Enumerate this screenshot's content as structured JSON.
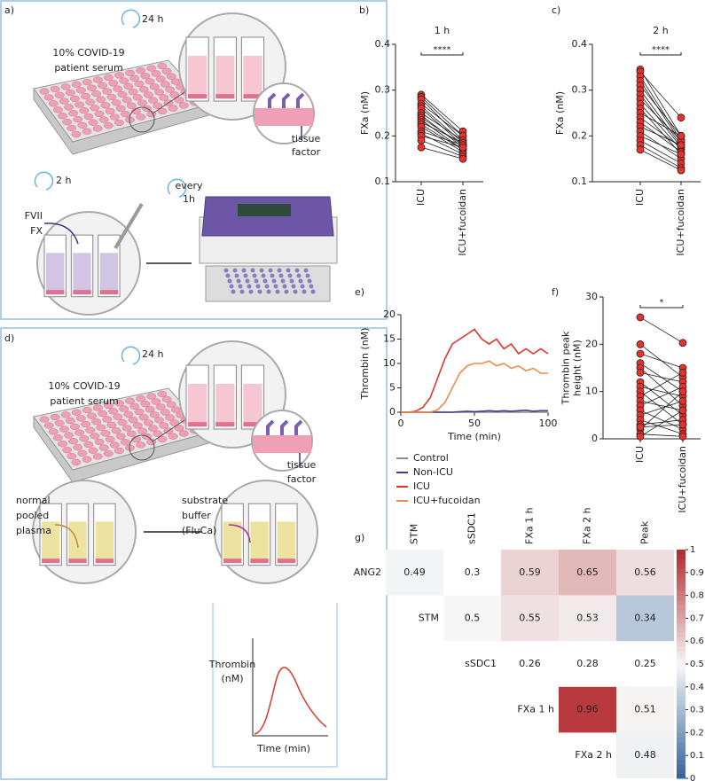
{
  "figure_a": {
    "label": "a)",
    "cycle": "24 h",
    "serum": [
      "10% COVID-19",
      "patient serum"
    ],
    "tissue_factor": [
      "tissue",
      "factor"
    ],
    "incubation": "2 h",
    "sampling": [
      "every",
      "1h"
    ],
    "reagents": [
      "FVII",
      "FX"
    ]
  },
  "figure_d": {
    "label": "d)",
    "cycle": "24 h",
    "serum": [
      "10% COVID-19",
      "patient serum"
    ],
    "tissue_factor": [
      "tissue",
      "factor"
    ],
    "plasma": [
      "normal",
      "pooled",
      "plasma"
    ],
    "substrate": [
      "substrate",
      "buffer",
      "(FluCa)"
    ],
    "inset": {
      "y_label": [
        "Thrombin",
        "(nM)"
      ],
      "x_label": "Time (min)"
    }
  },
  "chart_data": [
    {
      "type": "paired",
      "panel_label": "b)",
      "title": "1 h",
      "y_label": [
        "FXa (nM)"
      ],
      "categories": [
        "ICU",
        "ICU+fucoidan"
      ],
      "annotation": "****",
      "color": "#e8312a",
      "ylim": [
        0.1,
        0.4
      ],
      "yticks": [
        0.1,
        0.2,
        0.3,
        0.4
      ],
      "pairs": [
        [
          0.29,
          0.21
        ],
        [
          0.285,
          0.2
        ],
        [
          0.28,
          0.19
        ],
        [
          0.27,
          0.2
        ],
        [
          0.265,
          0.185
        ],
        [
          0.26,
          0.18
        ],
        [
          0.25,
          0.19
        ],
        [
          0.245,
          0.175
        ],
        [
          0.24,
          0.18
        ],
        [
          0.235,
          0.17
        ],
        [
          0.23,
          0.185
        ],
        [
          0.225,
          0.17
        ],
        [
          0.22,
          0.165
        ],
        [
          0.21,
          0.18
        ],
        [
          0.205,
          0.16
        ],
        [
          0.2,
          0.175
        ],
        [
          0.19,
          0.155
        ],
        [
          0.175,
          0.15
        ]
      ]
    },
    {
      "type": "paired",
      "panel_label": "c)",
      "title": "2 h",
      "y_label": [
        "FXa (nM)"
      ],
      "categories": [
        "ICU",
        "ICU+fucoidan"
      ],
      "annotation": "****",
      "color": "#e8312a",
      "ylim": [
        0.1,
        0.4
      ],
      "yticks": [
        0.1,
        0.2,
        0.3,
        0.4
      ],
      "pairs": [
        [
          0.345,
          0.2
        ],
        [
          0.34,
          0.24
        ],
        [
          0.33,
          0.19
        ],
        [
          0.32,
          0.185
        ],
        [
          0.31,
          0.2
        ],
        [
          0.3,
          0.18
        ],
        [
          0.29,
          0.175
        ],
        [
          0.28,
          0.19
        ],
        [
          0.27,
          0.17
        ],
        [
          0.26,
          0.16
        ],
        [
          0.25,
          0.2
        ],
        [
          0.24,
          0.175
        ],
        [
          0.23,
          0.165
        ],
        [
          0.22,
          0.18
        ],
        [
          0.21,
          0.15
        ],
        [
          0.2,
          0.16
        ],
        [
          0.19,
          0.14
        ],
        [
          0.18,
          0.13
        ],
        [
          0.17,
          0.125
        ]
      ]
    },
    {
      "type": "line",
      "panel_label": "e)",
      "x_label": "Time (min)",
      "y_label": [
        "Thrombin (nM)"
      ],
      "x": [
        0,
        5,
        10,
        15,
        20,
        25,
        30,
        35,
        40,
        45,
        50,
        55,
        60,
        65,
        70,
        75,
        80,
        85,
        90,
        95,
        100
      ],
      "xlim": [
        0,
        100
      ],
      "xticks": [
        0,
        50,
        100
      ],
      "ylim": [
        0,
        20
      ],
      "yticks": [
        0,
        5,
        10,
        15,
        20
      ],
      "series": [
        {
          "name": "Control",
          "color": "#8c8c8c",
          "values": [
            0,
            0,
            0,
            0,
            0,
            0,
            0,
            0,
            0,
            0,
            0,
            0,
            0,
            0,
            0,
            0,
            0,
            0,
            0,
            0,
            0
          ]
        },
        {
          "name": "Non-ICU",
          "color": "#4b3a8c",
          "values": [
            0,
            0,
            0,
            0,
            0,
            0,
            0,
            0,
            0.1,
            0.2,
            0.1,
            0.2,
            0.3,
            0.2,
            0.3,
            0.2,
            0.3,
            0.4,
            0.2,
            0.3,
            0.3
          ]
        },
        {
          "name": "ICU",
          "color": "#e0362b",
          "values": [
            0,
            0,
            0.2,
            1,
            3,
            7,
            11,
            14,
            15,
            16,
            17,
            15,
            14,
            15,
            13,
            14,
            12,
            13,
            12,
            13,
            12
          ]
        },
        {
          "name": "ICU+fucoidan",
          "color": "#f08a4b",
          "values": [
            0,
            0,
            0,
            0,
            0,
            0.5,
            2,
            5,
            8,
            9.5,
            10,
            10,
            10.5,
            9.5,
            10,
            9,
            9.5,
            8.5,
            9,
            8,
            8
          ]
        }
      ]
    },
    {
      "type": "paired",
      "panel_label": "f)",
      "y_label": [
        "Thrombin peak",
        "height (nM)"
      ],
      "categories": [
        "ICU",
        "ICU+fucoidan"
      ],
      "annotation": "*",
      "color": "#e8312a",
      "ylim": [
        0,
        30
      ],
      "yticks": [
        0,
        10,
        20,
        30
      ],
      "pairs": [
        [
          25.7,
          20.3
        ],
        [
          20,
          13
        ],
        [
          18,
          15
        ],
        [
          16,
          10
        ],
        [
          15,
          7
        ],
        [
          14,
          12
        ],
        [
          12,
          5
        ],
        [
          11,
          9
        ],
        [
          10,
          3
        ],
        [
          9,
          14
        ],
        [
          8,
          6
        ],
        [
          7,
          11
        ],
        [
          6,
          2
        ],
        [
          5,
          8
        ],
        [
          4,
          1
        ],
        [
          3,
          4
        ],
        [
          2,
          10
        ],
        [
          1,
          0.5
        ],
        [
          0.5,
          6
        ],
        [
          2.5,
          3
        ]
      ]
    },
    {
      "type": "heatmap",
      "panel_label": "g)",
      "x_categories": [
        "STM",
        "sSDC1",
        "FXa 1 h",
        "FXa 2 h",
        "Peak"
      ],
      "y_categories": [
        "ANG2",
        "STM",
        "sSDC1",
        "FXa 1 h",
        "FXa 2 h"
      ],
      "values": [
        [
          0.49,
          0.3,
          0.59,
          0.65,
          0.56
        ],
        [
          null,
          0.5,
          0.55,
          0.53,
          0.34
        ],
        [
          null,
          null,
          0.26,
          0.28,
          0.25
        ],
        [
          null,
          null,
          null,
          0.96,
          0.51
        ],
        [
          null,
          null,
          null,
          null,
          0.48
        ]
      ],
      "shaded": [
        [
          true,
          false,
          true,
          true,
          true
        ],
        [
          null,
          true,
          true,
          true,
          true
        ],
        [
          null,
          null,
          false,
          false,
          false
        ],
        [
          null,
          null,
          null,
          true,
          true
        ],
        [
          null,
          null,
          null,
          null,
          true
        ]
      ],
      "colormap": [
        "#34619c",
        "#f7f7f7",
        "#b2282e"
      ],
      "clim": [
        0,
        1
      ],
      "cticks": [
        0,
        0.1,
        0.2,
        0.3,
        0.4,
        0.5,
        0.6,
        0.7,
        0.8,
        0.9,
        1
      ]
    }
  ]
}
